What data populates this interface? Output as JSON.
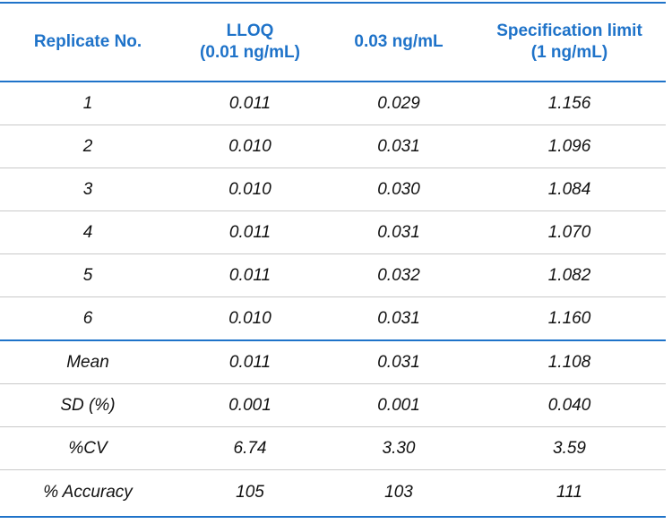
{
  "table": {
    "headers": [
      {
        "line1": "Replicate No.",
        "line2": ""
      },
      {
        "line1": "LLOQ",
        "line2": "(0.01 ng/mL)"
      },
      {
        "line1": "0.03 ng/mL",
        "line2": ""
      },
      {
        "line1": "Specification limit",
        "line2": "(1 ng/mL)"
      }
    ],
    "replicate_rows": [
      [
        "1",
        "0.011",
        "0.029",
        "1.156"
      ],
      [
        "2",
        "0.010",
        "0.031",
        "1.096"
      ],
      [
        "3",
        "0.010",
        "0.030",
        "1.084"
      ],
      [
        "4",
        "0.011",
        "0.031",
        "1.070"
      ],
      [
        "5",
        "0.011",
        "0.032",
        "1.082"
      ],
      [
        "6",
        "0.010",
        "0.031",
        "1.160"
      ]
    ],
    "summary_rows": [
      [
        "Mean",
        "0.011",
        "0.031",
        "1.108"
      ],
      [
        "SD (%)",
        "0.001",
        "0.001",
        "0.040"
      ],
      [
        "%CV",
        "6.74",
        "3.30",
        "3.59"
      ],
      [
        "% Accuracy",
        "105",
        "103",
        "111"
      ]
    ],
    "colors": {
      "header_text": "#1f73c9",
      "rule": "#1f73c9",
      "divider": "#c9c9c9",
      "body_text": "#111111"
    }
  }
}
